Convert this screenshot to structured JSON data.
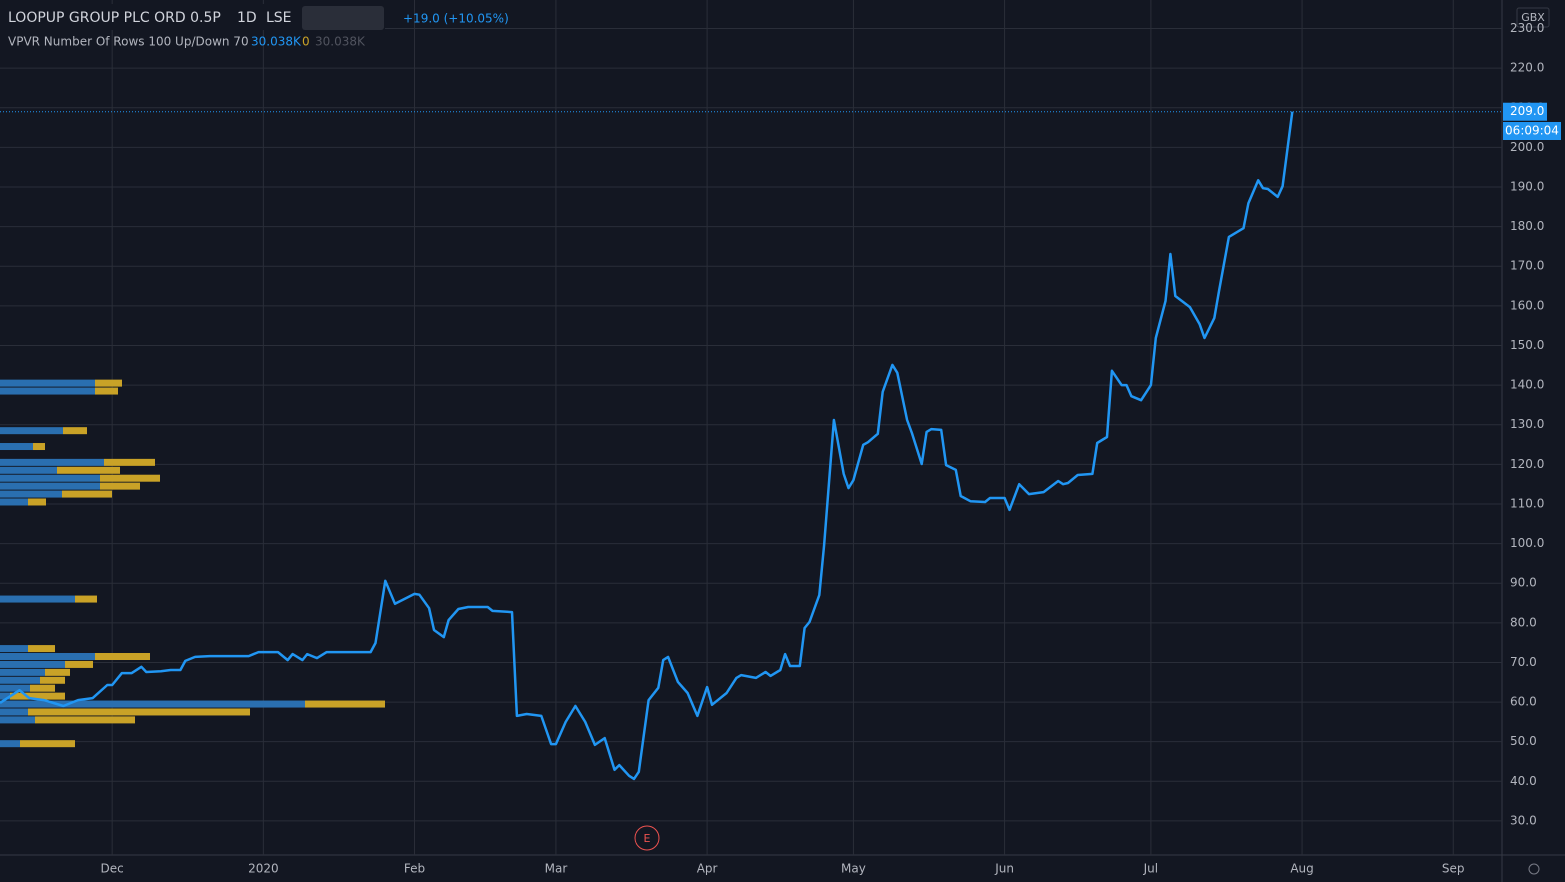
{
  "header": {
    "symbol": "LOOPUP GROUP PLC ORD 0.5P",
    "interval": "1D",
    "exchange": "LSE",
    "change": "+19.0 (+10.05%)",
    "indicator": "VPVR Number Of Rows 100 Up/Down 70",
    "ind_v1": "30.038K",
    "ind_v2": "0",
    "ind_v3": "30.038K",
    "currency": "GBX",
    "timer": "06:09:04",
    "event": "E"
  },
  "chart_data": {
    "type": "line",
    "color": "#2196f3",
    "x": [
      -23,
      -19,
      -17,
      -14,
      -10,
      -7,
      -4,
      -1,
      0,
      2,
      4,
      6,
      7,
      10,
      12,
      14,
      15,
      17,
      20,
      28,
      30,
      34,
      36,
      37,
      39,
      40,
      42,
      44,
      53,
      54,
      56,
      58,
      62,
      63,
      65,
      66,
      68,
      69,
      71,
      73,
      77,
      78,
      82,
      83,
      85,
      88,
      90,
      91,
      93,
      95,
      97,
      99,
      101,
      103,
      104,
      106,
      107,
      108,
      110,
      112,
      113,
      114,
      116,
      118,
      120,
      122,
      123,
      126,
      128,
      129,
      132,
      134,
      135,
      137,
      138,
      139,
      141,
      142,
      143,
      145,
      146,
      148,
      150,
      151,
      152,
      154,
      155,
      157,
      158,
      160,
      161,
      163,
      164,
      166,
      167,
      168,
      170,
      171,
      173,
      174,
      176,
      179,
      180,
      183,
      184,
      186,
      188,
      191,
      194,
      195,
      196,
      198,
      201,
      202,
      204,
      205,
      207,
      208,
      209,
      211,
      213,
      214,
      216,
      217,
      218,
      221,
      223,
      224,
      226,
      227,
      229,
      232,
      233,
      235,
      236,
      237,
      239,
      240,
      242
    ],
    "values": [
      59.8,
      63,
      61,
      60.5,
      59,
      60.5,
      61,
      64.3,
      64.3,
      67.3,
      67.3,
      68.9,
      67.6,
      67.8,
      68.1,
      68.1,
      70.4,
      71.4,
      71.6,
      71.6,
      72.6,
      72.6,
      70.6,
      72.1,
      70.6,
      72.1,
      71.1,
      72.6,
      72.6,
      74.9,
      90.6,
      84.8,
      87.3,
      87.1,
      83.7,
      78.2,
      76.4,
      80.7,
      83.5,
      84,
      84,
      83,
      82.7,
      56.5,
      57,
      56.5,
      49.4,
      49.4,
      55,
      59,
      55,
      49.2,
      50.9,
      42.9,
      44.1,
      41.4,
      40.6,
      42.4,
      60.5,
      63.6,
      70.6,
      71.4,
      65.1,
      62.3,
      56.5,
      63.8,
      59.3,
      62.3,
      66.1,
      66.8,
      66.1,
      67.6,
      66.6,
      68.1,
      72.1,
      69.1,
      69.1,
      78.7,
      80.2,
      87,
      99.6,
      131.2,
      117.6,
      114,
      116,
      124.9,
      125.6,
      127.7,
      138.3,
      145.1,
      143.1,
      131.2,
      127.9,
      120.1,
      128.2,
      128.9,
      128.7,
      119.8,
      118.6,
      112,
      110.7,
      110.5,
      111.5,
      111.5,
      108.5,
      115,
      112.5,
      113,
      115.8,
      115,
      115.3,
      117.3,
      117.6,
      125.4,
      126.9,
      143.6,
      140,
      140,
      137.2,
      136.2,
      140,
      151.9,
      161.2,
      173.1,
      162.5,
      159.7,
      155.4,
      151.9,
      156.9,
      164,
      177.4,
      179.6,
      185.9,
      191.7,
      189.7,
      189.5,
      187.5,
      190.2,
      209
    ],
    "xlim": [
      -23,
      285
    ],
    "xticks": [
      {
        "value": 0,
        "label": "Dec"
      },
      {
        "value": 31,
        "label": "2020"
      },
      {
        "value": 62,
        "label": "Feb"
      },
      {
        "value": 91,
        "label": "Mar"
      },
      {
        "value": 122,
        "label": "Apr"
      },
      {
        "value": 152,
        "label": "May"
      },
      {
        "value": 183,
        "label": "Jun"
      },
      {
        "value": 213,
        "label": "Jul"
      },
      {
        "value": 244,
        "label": "Aug"
      },
      {
        "value": 275,
        "label": "Sep"
      }
    ],
    "ylim": [
      21.4,
      237.2
    ],
    "yticks": [
      {
        "value": 30,
        "label": "30.0"
      },
      {
        "value": 40,
        "label": "40.0"
      },
      {
        "value": 50,
        "label": "50.0"
      },
      {
        "value": 60,
        "label": "60.0"
      },
      {
        "value": 70,
        "label": "70.0"
      },
      {
        "value": 80,
        "label": "80.0"
      },
      {
        "value": 90,
        "label": "90.0"
      },
      {
        "value": 100,
        "label": "100.0"
      },
      {
        "value": 110,
        "label": "110.0"
      },
      {
        "value": 120,
        "label": "120.0"
      },
      {
        "value": 130,
        "label": "130.0"
      },
      {
        "value": 140,
        "label": "140.0"
      },
      {
        "value": 150,
        "label": "150.0"
      },
      {
        "value": 160,
        "label": "160.0"
      },
      {
        "value": 170,
        "label": "170.0"
      },
      {
        "value": 180,
        "label": "180.0"
      },
      {
        "value": 190,
        "label": "190.0"
      },
      {
        "value": 200,
        "label": "200.0"
      },
      {
        "value": 210,
        "label": "210.0"
      },
      {
        "value": 220,
        "label": "220.0"
      },
      {
        "value": 230,
        "label": "230.0"
      }
    ],
    "grid": true,
    "last_price": {
      "value": 209,
      "label": "209.0"
    },
    "volume_profile": {
      "up_color": "#2a6fb0",
      "down_color": "#c9a227",
      "price": [
        49.5,
        55.5,
        57.5,
        59.5,
        61.5,
        63.5,
        65.5,
        67.5,
        69.5,
        71.5,
        73.5,
        86,
        110.5,
        112.5,
        114.5,
        116.5,
        118.5,
        120.5,
        124.5,
        128.5,
        138.5,
        140.5
      ],
      "up": [
        20,
        35,
        28,
        305,
        10,
        30,
        40,
        45,
        65,
        95,
        28,
        75,
        28,
        62,
        100,
        100,
        57,
        104,
        33,
        63,
        95,
        95
      ],
      "down": [
        55,
        100,
        222,
        80,
        55,
        25,
        25,
        25,
        28,
        55,
        27,
        22,
        18,
        50,
        40,
        60,
        63,
        51,
        12,
        24,
        23,
        27
      ]
    }
  }
}
